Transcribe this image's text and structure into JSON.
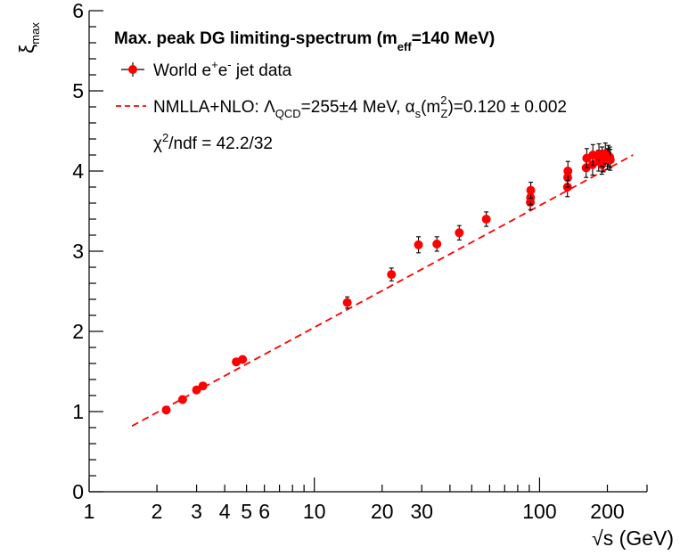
{
  "chart_data": {
    "type": "scatter",
    "title": "",
    "xlabel": "√s (GeV)",
    "ylabel": "ξmax",
    "xscale": "log",
    "xlim": [
      1,
      300
    ],
    "ylim": [
      0,
      6
    ],
    "grid": false,
    "legend_placement": "top-left",
    "x_ticks": [
      1,
      2,
      3,
      4,
      5,
      6,
      10,
      20,
      30,
      100,
      200
    ],
    "x_tick_labels": [
      "1",
      "2",
      "3",
      "4",
      "5",
      "6",
      "10",
      "20",
      "30",
      "100",
      "200"
    ],
    "y_ticks": [
      0,
      1,
      2,
      3,
      4,
      5,
      6
    ],
    "y_tick_labels": [
      "0",
      "1",
      "2",
      "3",
      "4",
      "5",
      "6"
    ],
    "legend": {
      "header": {
        "main": "Max. peak DG limiting-spectrum (m",
        "sub": "eff",
        "tail": "=140 MeV)"
      },
      "data_entry": {
        "prefix": "World e",
        "sup1": "+",
        "mid": "e",
        "sup2": "-",
        "tail": " jet data"
      },
      "fit_entry": {
        "prefix": "NMLLA+NLO: Λ",
        "sub1": "QCD",
        "mid": "=255±4 MeV, α",
        "sub2": "s",
        "mid2": "(m",
        "sup3": "2",
        "sub3": "Z",
        "tail": ")=0.120 ± 0.002"
      },
      "chi2": {
        "prefix": "χ",
        "sup": "2",
        "tail": "/ndf = 42.2/32"
      }
    },
    "colors": {
      "data": "#ff0000",
      "fit": "#ff0000",
      "errorbar": "#000000"
    },
    "fit_line": {
      "x": [
        1.55,
        260
      ],
      "y": [
        0.82,
        4.2
      ]
    },
    "series": [
      {
        "name": "World e+e- jet data",
        "points": [
          {
            "x": 2.2,
            "y": 1.02,
            "err": 0.03
          },
          {
            "x": 2.6,
            "y": 1.15,
            "err": 0.03
          },
          {
            "x": 3.0,
            "y": 1.27,
            "err": 0.03
          },
          {
            "x": 3.2,
            "y": 1.32,
            "err": 0.03
          },
          {
            "x": 4.5,
            "y": 1.62,
            "err": 0.03
          },
          {
            "x": 4.8,
            "y": 1.65,
            "err": 0.03
          },
          {
            "x": 14.0,
            "y": 2.36,
            "err": 0.07
          },
          {
            "x": 22.0,
            "y": 2.71,
            "err": 0.08
          },
          {
            "x": 29.0,
            "y": 3.08,
            "err": 0.1
          },
          {
            "x": 35.0,
            "y": 3.09,
            "err": 0.09
          },
          {
            "x": 44.0,
            "y": 3.23,
            "err": 0.09
          },
          {
            "x": 58.0,
            "y": 3.4,
            "err": 0.09
          },
          {
            "x": 91.0,
            "y": 3.61,
            "err": 0.09
          },
          {
            "x": 91.2,
            "y": 3.67,
            "err": 0.09
          },
          {
            "x": 91.4,
            "y": 3.76,
            "err": 0.1
          },
          {
            "x": 133.0,
            "y": 3.8,
            "err": 0.12
          },
          {
            "x": 133.3,
            "y": 3.92,
            "err": 0.12
          },
          {
            "x": 133.6,
            "y": 4.0,
            "err": 0.12
          },
          {
            "x": 161.0,
            "y": 4.04,
            "err": 0.12
          },
          {
            "x": 162.0,
            "y": 4.16,
            "err": 0.12
          },
          {
            "x": 172.0,
            "y": 4.08,
            "err": 0.13
          },
          {
            "x": 172.5,
            "y": 4.2,
            "err": 0.13
          },
          {
            "x": 183.0,
            "y": 4.13,
            "err": 0.13
          },
          {
            "x": 183.5,
            "y": 4.21,
            "err": 0.13
          },
          {
            "x": 189.0,
            "y": 4.08,
            "err": 0.12
          },
          {
            "x": 189.5,
            "y": 4.18,
            "err": 0.12
          },
          {
            "x": 192.0,
            "y": 4.12,
            "err": 0.13
          },
          {
            "x": 196.0,
            "y": 4.22,
            "err": 0.13
          },
          {
            "x": 200.0,
            "y": 4.15,
            "err": 0.13
          },
          {
            "x": 202.0,
            "y": 4.19,
            "err": 0.13
          },
          {
            "x": 205.0,
            "y": 4.17,
            "err": 0.13
          },
          {
            "x": 206.0,
            "y": 4.14,
            "err": 0.13
          }
        ]
      }
    ]
  }
}
